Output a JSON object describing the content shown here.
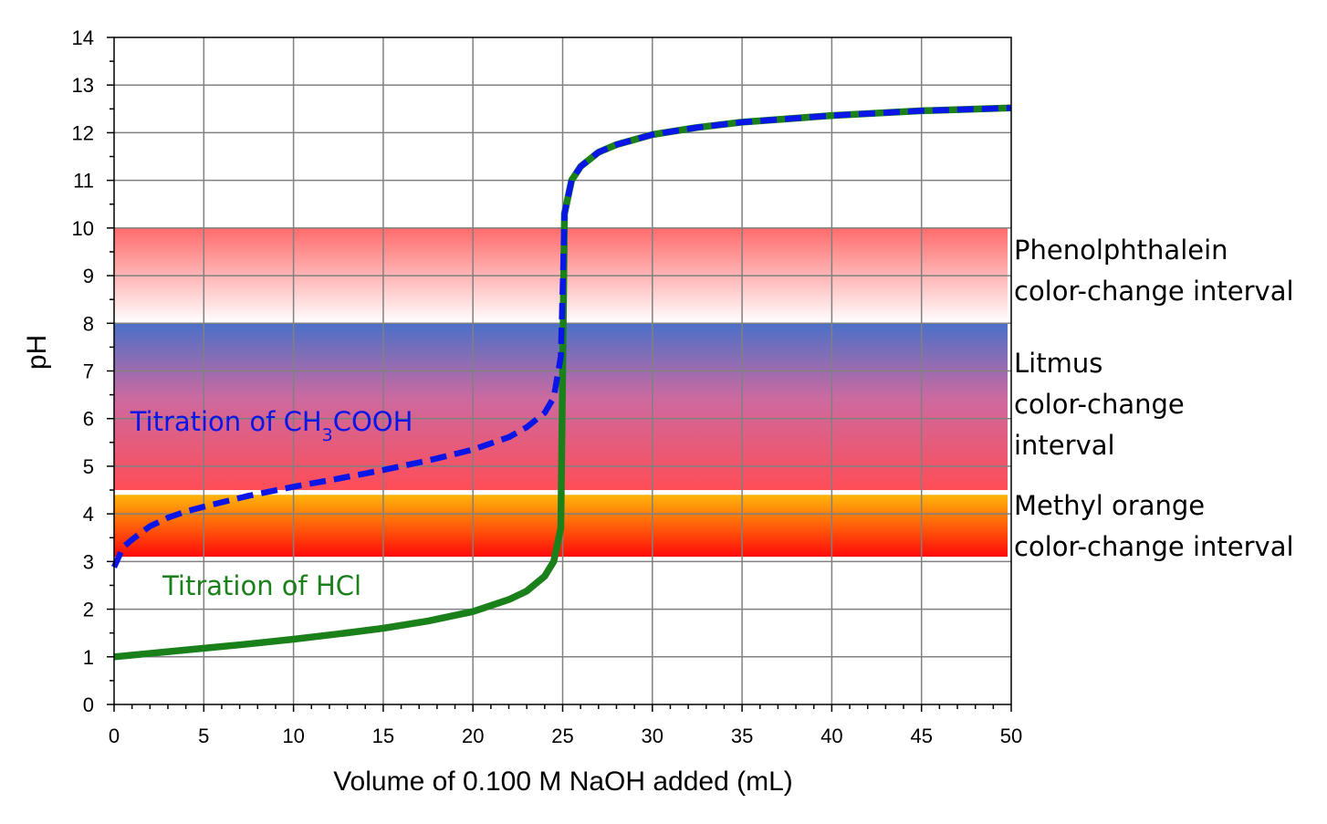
{
  "chart_data": {
    "type": "line",
    "title": "",
    "xlabel": "Volume of 0.100 M NaOH added (mL)",
    "ylabel": "pH",
    "xlim": [
      0,
      50
    ],
    "ylim": [
      0,
      14
    ],
    "xticks": [
      0,
      5,
      10,
      15,
      20,
      25,
      30,
      35,
      40,
      45,
      50
    ],
    "yticks": [
      0,
      1,
      2,
      3,
      4,
      5,
      6,
      7,
      8,
      9,
      10,
      11,
      12,
      13,
      14
    ],
    "grid": true,
    "series": [
      {
        "name": "Titration of HCl",
        "color": "#1a801a",
        "style": "solid",
        "x": [
          0,
          2.5,
          5,
          7.5,
          10,
          12.5,
          15,
          17.5,
          20,
          22,
          23,
          24,
          24.5,
          24.9,
          25,
          25.1,
          25.5,
          26,
          27,
          28,
          30,
          32.5,
          35,
          40,
          45,
          50
        ],
        "y": [
          1.0,
          1.09,
          1.18,
          1.27,
          1.37,
          1.48,
          1.6,
          1.75,
          1.95,
          2.2,
          2.38,
          2.69,
          3.0,
          3.7,
          7.0,
          10.3,
          11.0,
          11.29,
          11.59,
          11.75,
          11.96,
          12.11,
          12.22,
          12.36,
          12.46,
          12.52
        ]
      },
      {
        "name": "Titration of CH3COOH",
        "color": "#0a16e8",
        "style": "dashed",
        "x": [
          0,
          0.5,
          1,
          2,
          3,
          4,
          5,
          7.5,
          10,
          12.5,
          15,
          17.5,
          20,
          22,
          23,
          24,
          24.5,
          24.9,
          25,
          25.1,
          25.5,
          26,
          27,
          28,
          30,
          32.5,
          35,
          40,
          45,
          50
        ],
        "y": [
          2.88,
          3.3,
          3.46,
          3.74,
          3.92,
          4.05,
          4.15,
          4.38,
          4.57,
          4.74,
          4.92,
          5.12,
          5.35,
          5.61,
          5.82,
          6.12,
          6.44,
          7.3,
          8.72,
          10.3,
          11.0,
          11.29,
          11.59,
          11.75,
          11.96,
          12.11,
          12.22,
          12.36,
          12.46,
          12.52
        ]
      }
    ],
    "bands": [
      {
        "name": "Phenolphthalein color-change interval",
        "label_lines": [
          "Phenolphthalein",
          "color-change interval"
        ],
        "ph_low": 8.0,
        "ph_high": 10.0,
        "color_top": "#ff6b6b",
        "color_bottom": "#ffffff"
      },
      {
        "name": "Litmus color-change interval",
        "label_lines": [
          "Litmus",
          "color-change",
          "interval"
        ],
        "ph_low": 4.5,
        "ph_high": 8.0,
        "color_top": "#4a70c8",
        "color_mid": "#cc6aa0",
        "color_bottom": "#ff4d57"
      },
      {
        "name": "Methyl orange color-change interval",
        "label_lines": [
          "Methyl orange",
          "color-change interval"
        ],
        "ph_low": 3.1,
        "ph_high": 4.4,
        "color_top": "#ffb40a",
        "color_bottom": "#ff0a0a"
      }
    ],
    "annotations": [
      {
        "series": "Titration of CH3COOH",
        "text_main": "Titration of CH",
        "text_sub": "3",
        "text_rest": "COOH",
        "color": "#0a16e8",
        "x": 0.9,
        "y": 5.75
      },
      {
        "series": "Titration of HCl",
        "text_main": "Titration of HCl",
        "color": "#1a801a",
        "x": 2.7,
        "y": 2.3
      }
    ]
  }
}
